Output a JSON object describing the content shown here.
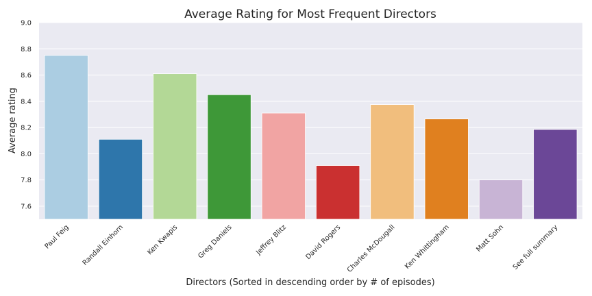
{
  "chart_data": {
    "type": "bar",
    "title": "Average Rating for Most Frequent Directors",
    "xlabel": "Directors (Sorted in descending order by # of episodes)",
    "ylabel": "Average rating",
    "ylim": [
      7.5,
      9.0
    ],
    "yticks": [
      "7.6",
      "7.8",
      "8.0",
      "8.2",
      "8.4",
      "8.6",
      "8.8",
      "9.0"
    ],
    "grid": true,
    "categories": [
      "Paul Feig",
      "Randall Einhorn",
      "Ken Kwapis",
      "Greg Daniels",
      "Jeffrey Blitz",
      "David Rogers",
      "Charles McDougall",
      "Ken Whittingham",
      "Matt Sohn",
      "See full summary"
    ],
    "values": [
      8.75,
      8.11,
      8.61,
      8.45,
      8.31,
      7.91,
      8.375,
      8.265,
      7.8,
      8.185
    ],
    "colors": [
      "#abcde2",
      "#2e76ab",
      "#b3d896",
      "#3e9838",
      "#f1a4a3",
      "#ca3030",
      "#f1be7d",
      "#e0801f",
      "#c8b4d5",
      "#6b4797"
    ]
  }
}
